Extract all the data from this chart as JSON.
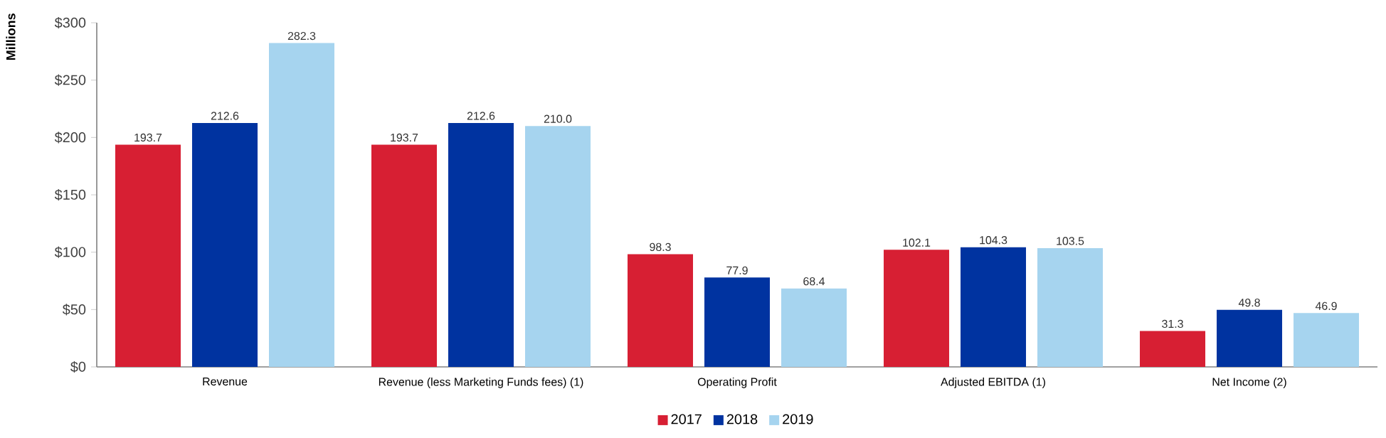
{
  "chart_data": {
    "type": "bar",
    "ylabel": "Millions",
    "categories": [
      "Revenue",
      "Revenue (less Marketing Funds fees) (1)",
      "Operating Profit",
      "Adjusted EBITDA (1)",
      "Net Income (2)"
    ],
    "series": [
      {
        "name": "2017",
        "color": "#d71f33",
        "values": [
          193.7,
          193.7,
          98.3,
          102.1,
          31.3
        ],
        "value_labels": [
          "193.7",
          "193.7",
          "98.3",
          "102.1",
          "31.3"
        ]
      },
      {
        "name": "2018",
        "color": "#0033a0",
        "values": [
          212.6,
          212.6,
          77.9,
          104.3,
          49.8
        ],
        "value_labels": [
          "212.6",
          "212.6",
          "77.9",
          "104.3",
          "49.8"
        ]
      },
      {
        "name": "2019",
        "color": "#a6d4ef",
        "values": [
          282.3,
          210.0,
          68.4,
          103.5,
          46.9
        ],
        "value_labels": [
          "282.3",
          "210.0",
          "68.4",
          "103.5",
          "46.9"
        ]
      }
    ],
    "ylim": [
      0,
      300
    ],
    "yticks": [
      {
        "value": 0,
        "label": "$0"
      },
      {
        "value": 50,
        "label": "$50"
      },
      {
        "value": 100,
        "label": "$100"
      },
      {
        "value": 150,
        "label": "$150"
      },
      {
        "value": 200,
        "label": "$200"
      },
      {
        "value": 250,
        "label": "$250"
      },
      {
        "value": 300,
        "label": "$300"
      }
    ],
    "grid": false,
    "legend": "bottom"
  }
}
